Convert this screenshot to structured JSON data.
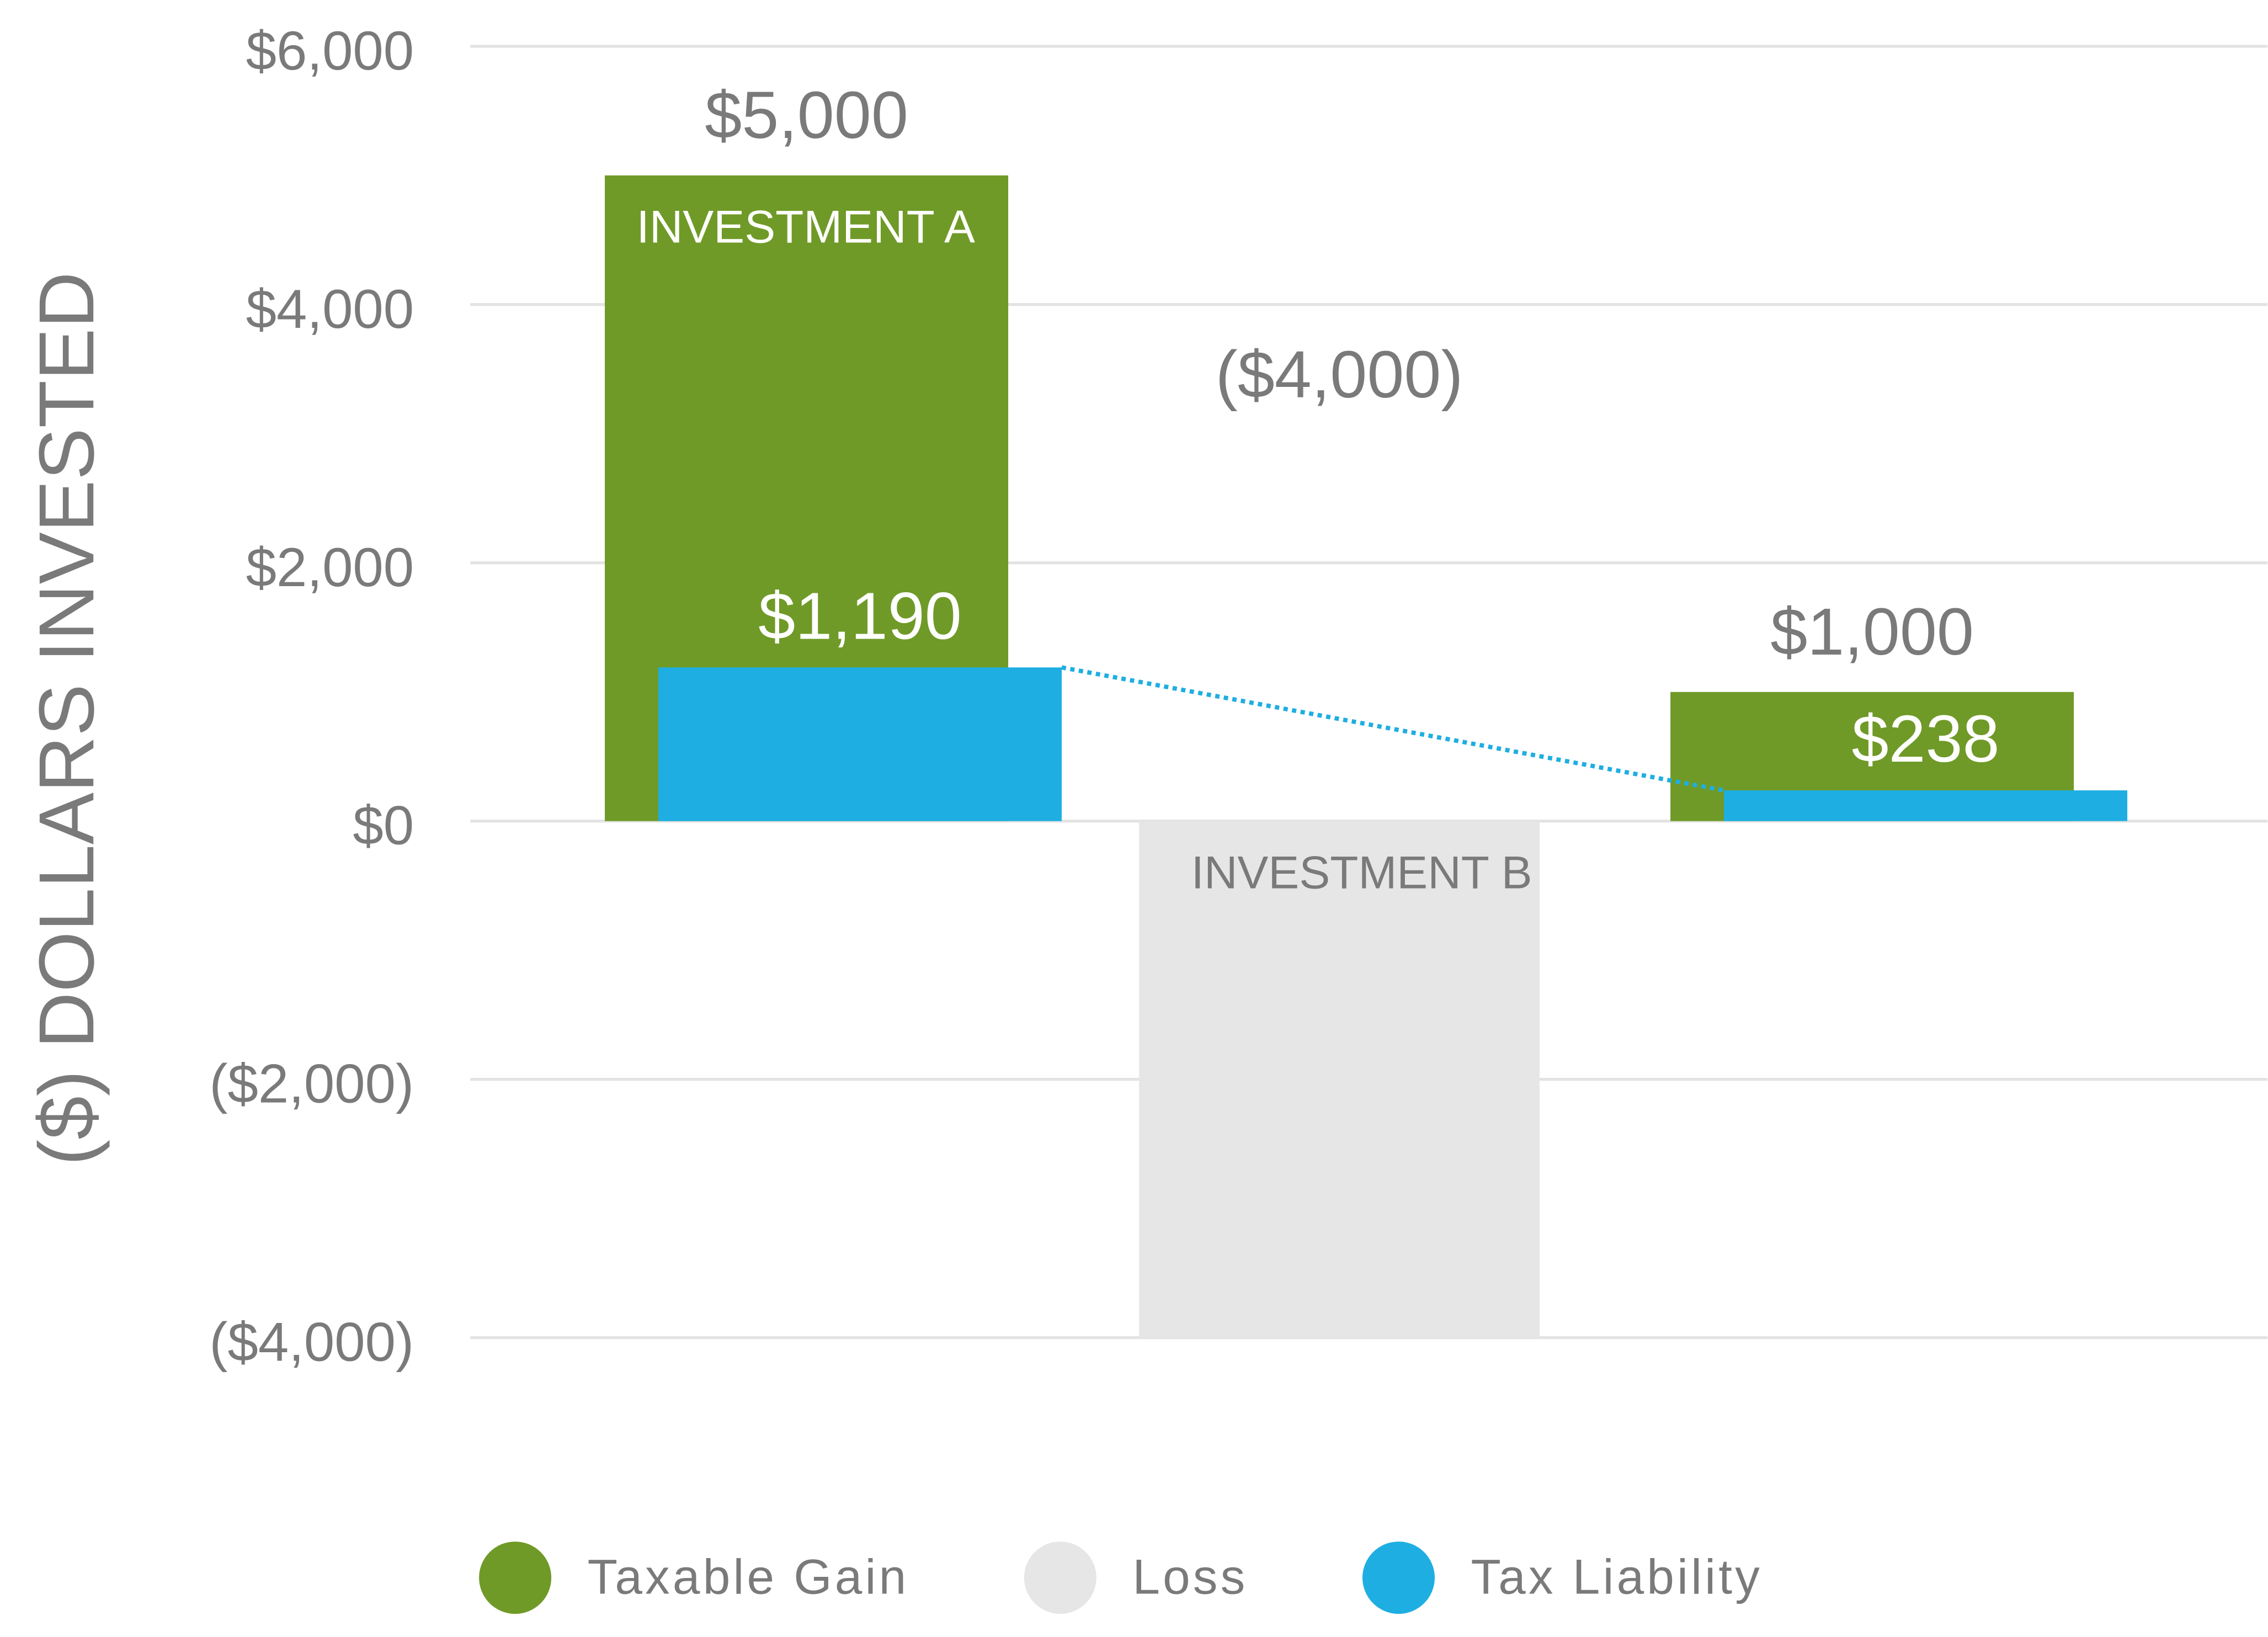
{
  "chart_data": {
    "type": "bar",
    "y_label": "($) DOLLARS INVESTED",
    "categories": [
      "INVESTMENT A",
      "INVESTMENT B",
      null
    ],
    "series": [
      {
        "name": "Taxable Gain",
        "color": "#6f9a27",
        "values": [
          5000,
          null,
          1000
        ],
        "value_labels": [
          "$5,000",
          null,
          "$1,000"
        ]
      },
      {
        "name": "Loss",
        "color": "#e6e6e6",
        "values": [
          null,
          -4000,
          null
        ],
        "value_labels": [
          null,
          "($4,000)",
          null
        ]
      },
      {
        "name": "Tax Liability",
        "color": "#1eaee2",
        "values": [
          1190,
          null,
          238
        ],
        "value_labels": [
          "$1,190",
          null,
          "$238"
        ]
      }
    ],
    "ylim": [
      -4000,
      6000
    ],
    "yticks": [
      {
        "value": -4000,
        "label": "($4,000)"
      },
      {
        "value": -2000,
        "label": "($2,000)"
      },
      {
        "value": 0,
        "label": "$0"
      },
      {
        "value": 2000,
        "label": "$2,000"
      },
      {
        "value": 4000,
        "label": "$4,000"
      },
      {
        "value": 6000,
        "label": "$6,000"
      }
    ],
    "grid": true,
    "legend": "bottom"
  }
}
